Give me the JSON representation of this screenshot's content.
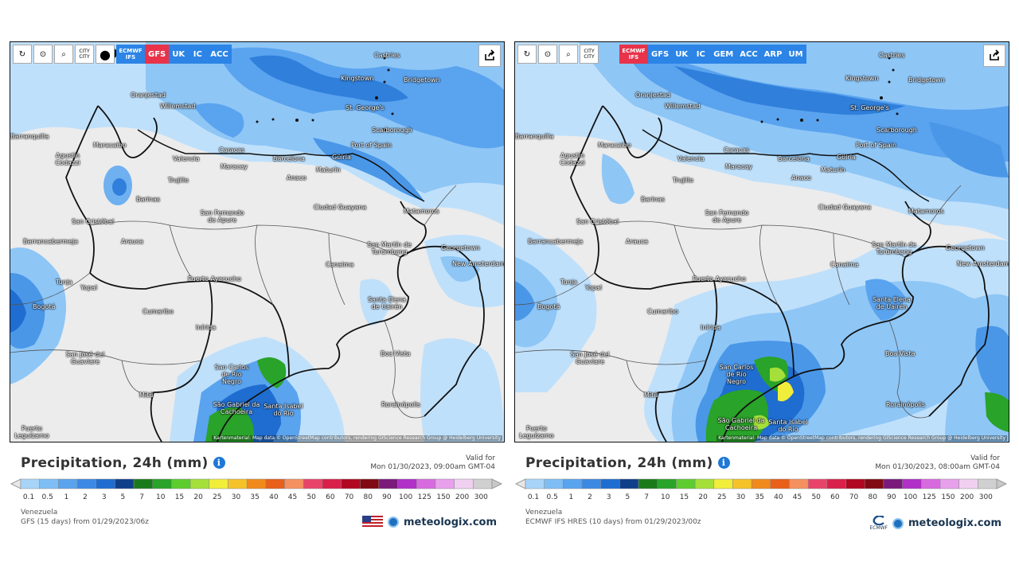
{
  "panels": [
    {
      "toolbar": {
        "reload_icon": "reload-icon",
        "location_icon": "location-pin-icon",
        "zoom_icon": "zoom-icon",
        "city_toggle": "CITY\nCITY",
        "dot_icon": "dot-icon",
        "models": [
          {
            "label": "ECMWF IFS",
            "active": false
          },
          {
            "label": "GFS",
            "active": true
          },
          {
            "label": "UK",
            "active": false
          },
          {
            "label": "IC",
            "active": false
          },
          {
            "label": "ACC",
            "active": false
          }
        ]
      },
      "attribution": "Kartenmaterial: Map data © OpenStreetMap contributors, rendering GIScience Research Group @ Heidelberg University",
      "cities": [
        "Castries",
        "Kingstown",
        "Bridgetown",
        "Oranjestad",
        "Willemstad",
        "St. George's",
        "Scarborough",
        "Port of Spain",
        "Barranquilla",
        "Maracaibo",
        "Caracas",
        "Valencia",
        "Maracay",
        "Barcelona",
        "Güiria",
        "Agustín Codazzi",
        "Trujillo",
        "Anaco",
        "Maturín",
        "Barinas",
        "Ciudad Guayana",
        "Matamoros",
        "San Cristóbal",
        "San Fernando de Apure",
        "Barrancabermeja",
        "Arauca",
        "San Martín de Turumbang",
        "Georgetown",
        "New Amsterdam",
        "Canaima",
        "Tunja",
        "Yopal",
        "Puerto Ayacucho",
        "Bogotá",
        "Santa Elena de Uairén",
        "Cumaribo",
        "Inírida",
        "San José del Guaviare",
        "Boa Vista",
        "San Carlos de Río Negro",
        "Mitú",
        "São Gabriel da Cachoeira",
        "Santa Isabel do Rio",
        "Puerto Leguízamo",
        "Rorainópolis"
      ],
      "title": "Precipitation, 24h (mm)",
      "valid_label": "Valid for",
      "valid_time": "Mon 01/30/2023, 09:00am GMT-04",
      "region": "Venezuela",
      "model_run": "GFS (15 days) from 01/29/2023/06z",
      "brand": "meteologix.com",
      "flag_icon": "us-flag-icon"
    },
    {
      "toolbar": {
        "reload_icon": "reload-icon",
        "location_icon": "location-pin-icon",
        "zoom_icon": "zoom-icon",
        "city_toggle": "CITY\nCITY",
        "models": [
          {
            "label": "ECMWF IFS",
            "active": true
          },
          {
            "label": "GFS",
            "active": false
          },
          {
            "label": "UK",
            "active": false
          },
          {
            "label": "IC",
            "active": false
          },
          {
            "label": "GEM",
            "active": false
          },
          {
            "label": "ACC",
            "active": false
          },
          {
            "label": "ARP",
            "active": false
          },
          {
            "label": "UM",
            "active": false
          }
        ]
      },
      "attribution": "Kartenmaterial: Map data © OpenStreetMap contributors, rendering GIScience Research Group @ Heidelberg University",
      "cities": [
        "Castries",
        "Kingstown",
        "Bridgetown",
        "Oranjestad",
        "Willemstad",
        "St. George's",
        "Scarborough",
        "Port of Spain",
        "Barranquilla",
        "Maracaibo",
        "Caracas",
        "Valencia",
        "Maracay",
        "Barcelona",
        "Güiria",
        "Agustín Codazzi",
        "Trujillo",
        "Anaco",
        "Maturín",
        "Barinas",
        "Ciudad Guayana",
        "Matamoros",
        "San Cristóbal",
        "San Fernando de Apure",
        "Barrancabermeja",
        "Arauca",
        "San Martín de Turumbang",
        "Georgetown",
        "New Amsterdam",
        "Canaima",
        "Tunja",
        "Yopal",
        "Puerto Ayacucho",
        "Bogotá",
        "Santa Elena de Uairén",
        "Cumaribo",
        "Inírida",
        "San José del Guaviare",
        "Boa Vista",
        "San Carlos de Río Negro",
        "Mitú",
        "São Gabriel da Cachoeira",
        "Santa Isabel do Rio",
        "Puerto Leguízamo",
        "Rorainópolis"
      ],
      "title": "Precipitation, 24h (mm)",
      "valid_label": "Valid for",
      "valid_time": "Mon 01/30/2023, 08:00am GMT-04",
      "region": "Venezuela",
      "model_run": "ECMWF IFS HRES (10 days) from 01/29/2023/00z",
      "brand": "meteologix.com",
      "flag_icon": "ecmwf-logo-icon",
      "flag_text": "ECMWF"
    }
  ],
  "legend": {
    "ticks": [
      "0.1",
      "0.5",
      "1",
      "2",
      "3",
      "5",
      "7",
      "10",
      "15",
      "20",
      "25",
      "30",
      "35",
      "40",
      "45",
      "50",
      "60",
      "70",
      "80",
      "90",
      "100",
      "125",
      "150",
      "200",
      "300"
    ],
    "colors": [
      "#a8d4f8",
      "#7fbdf5",
      "#5aa3ee",
      "#3b89e3",
      "#1f6dd0",
      "#103f8a",
      "#1a7a1a",
      "#29a329",
      "#5ccc2e",
      "#a5e03a",
      "#f0ee3a",
      "#f5c22a",
      "#f08a1c",
      "#e8601a",
      "#f59060",
      "#e8446a",
      "#d8204a",
      "#b00820",
      "#800a14",
      "#7a1a7a",
      "#b030c8",
      "#d86ae0",
      "#e8a0ec",
      "#f0d0f0",
      "#d0d0d0"
    ]
  }
}
